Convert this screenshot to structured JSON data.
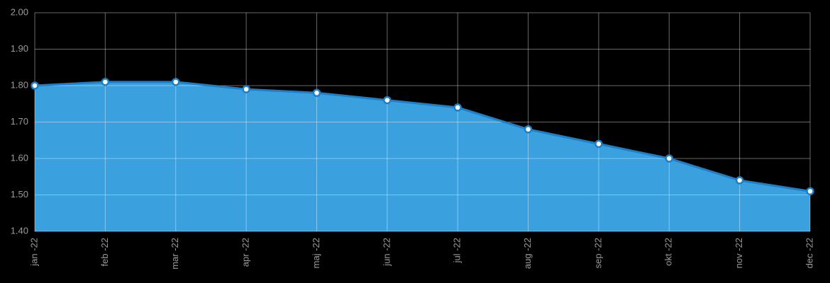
{
  "chart_data": {
    "type": "area",
    "categories": [
      "jan -22",
      "feb -22",
      "mar -22",
      "apr -22",
      "maj -22",
      "jun -22",
      "jul -22",
      "aug -22",
      "sep -22",
      "okt -22",
      "nov -22",
      "dec -22"
    ],
    "series": [
      {
        "name": null,
        "color": "#1a80cc",
        "fill": "#3aa0de",
        "values": [
          1.8,
          1.81,
          1.81,
          1.79,
          1.78,
          1.76,
          1.74,
          1.68,
          1.64,
          1.6,
          1.54,
          1.51
        ]
      }
    ],
    "ylim": [
      1.4,
      2.0
    ],
    "yticks": [
      {
        "value": 1.4,
        "label": "1.40"
      },
      {
        "value": 1.5,
        "label": "1.50"
      },
      {
        "value": 1.6,
        "label": "1.60"
      },
      {
        "value": 1.7,
        "label": "1.70"
      },
      {
        "value": 1.8,
        "label": "1.80"
      },
      {
        "value": 1.9,
        "label": "1.90"
      },
      {
        "value": 2.0,
        "label": "2.00"
      }
    ],
    "grid": true
  }
}
